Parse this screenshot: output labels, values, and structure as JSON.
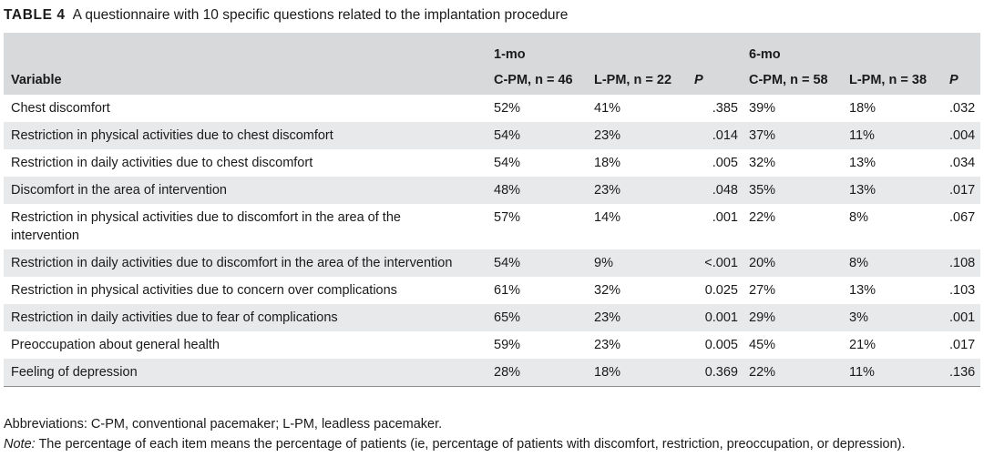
{
  "caption": {
    "label": "TABLE 4",
    "text": "A questionnaire with 10 specific questions related to the implantation procedure"
  },
  "header": {
    "variable": "Variable",
    "group_1": "1-mo",
    "group_2": "6-mo",
    "g1_cpm": "C-PM, n = 46",
    "g1_lpm": "L-PM, n = 22",
    "g1_p": "P",
    "g2_cpm": "C-PM, n = 58",
    "g2_lpm": "L-PM, n = 38",
    "g2_p": "P"
  },
  "rows": [
    {
      "variable": "Chest discomfort",
      "m1_cpm": "52%",
      "m1_lpm": "41%",
      "m1_p": ".385",
      "m6_cpm": "39%",
      "m6_lpm": "18%",
      "m6_p": ".032"
    },
    {
      "variable": "Restriction in physical activities due to chest discomfort",
      "m1_cpm": "54%",
      "m1_lpm": "23%",
      "m1_p": ".014",
      "m6_cpm": "37%",
      "m6_lpm": "11%",
      "m6_p": ".004"
    },
    {
      "variable": "Restriction in daily activities due to chest discomfort",
      "m1_cpm": "54%",
      "m1_lpm": "18%",
      "m1_p": ".005",
      "m6_cpm": "32%",
      "m6_lpm": "13%",
      "m6_p": ".034"
    },
    {
      "variable": "Discomfort in the area of intervention",
      "m1_cpm": "48%",
      "m1_lpm": "23%",
      "m1_p": ".048",
      "m6_cpm": "35%",
      "m6_lpm": "13%",
      "m6_p": ".017"
    },
    {
      "variable": "Restriction in physical activities due to discomfort in the area of the intervention",
      "m1_cpm": "57%",
      "m1_lpm": "14%",
      "m1_p": ".001",
      "m6_cpm": "22%",
      "m6_lpm": "8%",
      "m6_p": ".067"
    },
    {
      "variable": "Restriction in daily activities due to discomfort in the area of the intervention",
      "m1_cpm": "54%",
      "m1_lpm": "9%",
      "m1_p": "<.001",
      "m6_cpm": "20%",
      "m6_lpm": "8%",
      "m6_p": ".108"
    },
    {
      "variable": "Restriction in physical activities due to concern over complications",
      "m1_cpm": "61%",
      "m1_lpm": "32%",
      "m1_p": "0.025",
      "m6_cpm": "27%",
      "m6_lpm": "13%",
      "m6_p": ".103"
    },
    {
      "variable": "Restriction in daily activities due to fear of complications",
      "m1_cpm": "65%",
      "m1_lpm": "23%",
      "m1_p": "0.001",
      "m6_cpm": "29%",
      "m6_lpm": "3%",
      "m6_p": ".001"
    },
    {
      "variable": "Preoccupation about general health",
      "m1_cpm": "59%",
      "m1_lpm": "23%",
      "m1_p": "0.005",
      "m6_cpm": "45%",
      "m6_lpm": "21%",
      "m6_p": ".017"
    },
    {
      "variable": "Feeling of depression",
      "m1_cpm": "28%",
      "m1_lpm": "18%",
      "m1_p": "0.369",
      "m6_cpm": "22%",
      "m6_lpm": "11%",
      "m6_p": ".136"
    }
  ],
  "footnotes": {
    "abbreviations": "Abbreviations: C-PM, conventional pacemaker; L-PM, leadless pacemaker.",
    "note_label": "Note:",
    "note_text": " The percentage of each item means the percentage of patients (ie, percentage of patients with discomfort, restriction, preoccupation, or depression)."
  }
}
